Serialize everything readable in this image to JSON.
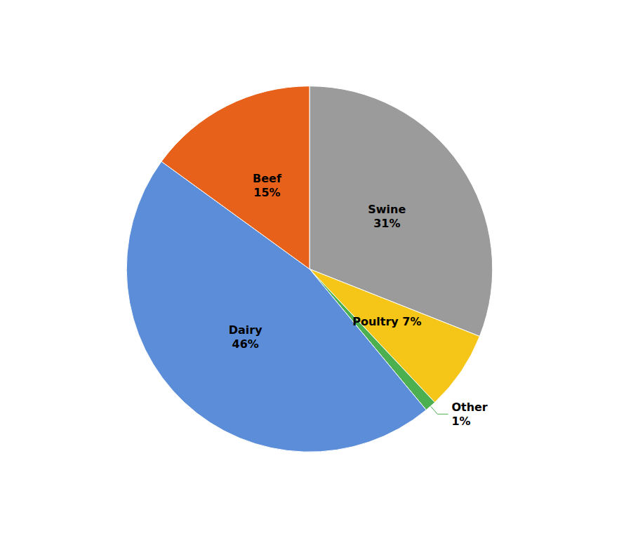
{
  "chart_data": {
    "type": "pie",
    "categories": [
      "Swine",
      "Poultry",
      "Other",
      "Dairy",
      "Beef"
    ],
    "values": [
      31,
      7,
      1,
      46,
      15
    ],
    "value_labels": [
      "Swine\n31%",
      "Poultry 7%",
      "Other\n1%",
      "Dairy\n46%",
      "Beef\n15%"
    ],
    "colors": [
      "#9B9B9B",
      "#F5C518",
      "#4CAF50",
      "#5B8DD9",
      "#E8611A"
    ],
    "data_labels": true
  }
}
